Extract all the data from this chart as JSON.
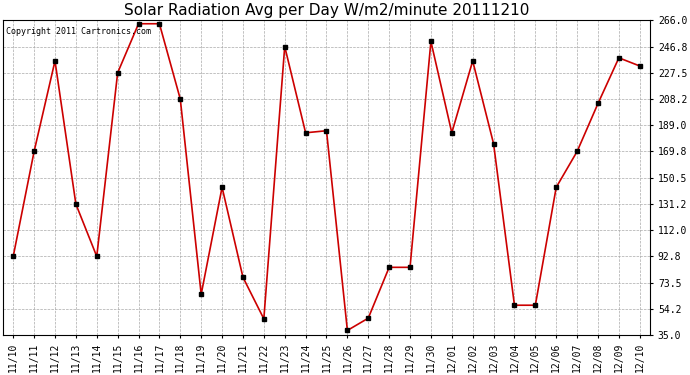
{
  "title": "Solar Radiation Avg per Day W/m2/minute 20111210",
  "copyright": "Copyright 2011 Cartronics.com",
  "x_labels": [
    "11/10",
    "11/11",
    "11/12",
    "11/13",
    "11/14",
    "11/15",
    "11/16",
    "11/17",
    "11/18",
    "11/19",
    "11/20",
    "11/21",
    "11/22",
    "11/23",
    "11/24",
    "11/25",
    "11/26",
    "11/27",
    "11/28",
    "11/29",
    "11/30",
    "12/01",
    "12/02",
    "12/03",
    "12/04",
    "12/05",
    "12/06",
    "12/07",
    "12/08",
    "12/09",
    "12/10"
  ],
  "y_values": [
    92.8,
    169.8,
    236.2,
    131.2,
    92.8,
    227.5,
    263.5,
    263.5,
    208.2,
    65.0,
    143.5,
    77.5,
    47.0,
    246.8,
    183.5,
    185.0,
    38.5,
    47.5,
    84.8,
    84.8,
    250.5,
    183.5,
    236.2,
    175.5,
    57.0,
    57.0,
    143.5,
    169.8,
    205.0,
    238.5,
    232.5
  ],
  "y_ticks": [
    35.0,
    54.2,
    73.5,
    92.8,
    112.0,
    131.2,
    150.5,
    169.8,
    189.0,
    208.2,
    227.5,
    246.8,
    266.0
  ],
  "y_min": 35.0,
  "y_max": 266.0,
  "line_color": "#cc0000",
  "marker_color": "#000000",
  "bg_color": "#ffffff",
  "grid_color": "#aaaaaa",
  "title_fontsize": 11,
  "copyright_fontsize": 6,
  "tick_fontsize": 7,
  "ytick_fontsize": 7
}
